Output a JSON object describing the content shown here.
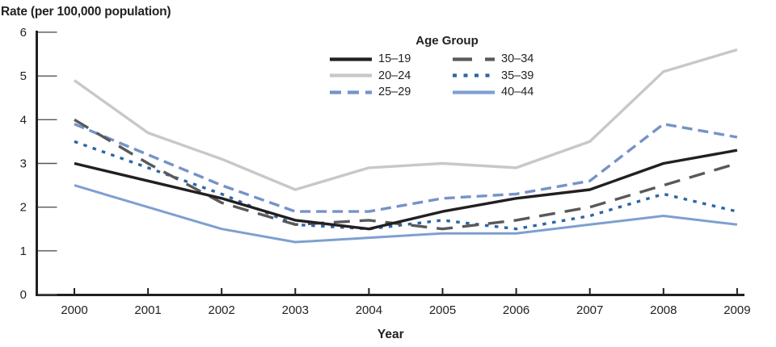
{
  "chart_data": {
    "type": "line",
    "title": "",
    "ylabel": "Rate (per 100,000 population)",
    "xlabel": "Year",
    "legend_title": "Age Group",
    "legend_position": "top-center",
    "grid": false,
    "ylim": [
      0,
      6
    ],
    "y_ticks": [
      "0",
      "1",
      "2",
      "3",
      "4",
      "5",
      "6"
    ],
    "x": [
      "2000",
      "2001",
      "2002",
      "2003",
      "2004",
      "2005",
      "2006",
      "2007",
      "2008",
      "2009"
    ],
    "series": [
      {
        "name": "15–19",
        "color": "#231f20",
        "style": "solid",
        "width": 3.4,
        "values": [
          3.0,
          2.6,
          2.2,
          1.7,
          1.5,
          1.9,
          2.2,
          2.4,
          3.0,
          3.3
        ]
      },
      {
        "name": "20–24",
        "color": "#c6c8ca",
        "style": "solid",
        "width": 3.4,
        "values": [
          4.9,
          3.7,
          3.1,
          2.4,
          2.9,
          3.0,
          2.9,
          3.5,
          5.1,
          5.6
        ]
      },
      {
        "name": "25–29",
        "color": "#7593c8",
        "style": "dashed",
        "width": 3.4,
        "values": [
          3.9,
          3.2,
          2.5,
          1.9,
          1.9,
          2.2,
          2.3,
          2.6,
          3.9,
          3.6
        ]
      },
      {
        "name": "30–34",
        "color": "#58595b",
        "style": "longdash",
        "width": 3.4,
        "values": [
          4.0,
          3.0,
          2.1,
          1.6,
          1.7,
          1.5,
          1.7,
          2.0,
          2.5,
          3.0
        ]
      },
      {
        "name": "35–39",
        "color": "#2d65a5",
        "style": "dotted",
        "width": 3.4,
        "values": [
          3.5,
          2.9,
          2.3,
          1.6,
          1.5,
          1.7,
          1.5,
          1.8,
          2.3,
          1.9
        ]
      },
      {
        "name": "40–44",
        "color": "#7da0d0",
        "style": "solid",
        "width": 3.0,
        "values": [
          2.5,
          2.0,
          1.5,
          1.2,
          1.3,
          1.4,
          1.4,
          1.6,
          1.8,
          1.6
        ]
      }
    ],
    "axis_color": "#231f20",
    "tick_color": "#55565a"
  }
}
